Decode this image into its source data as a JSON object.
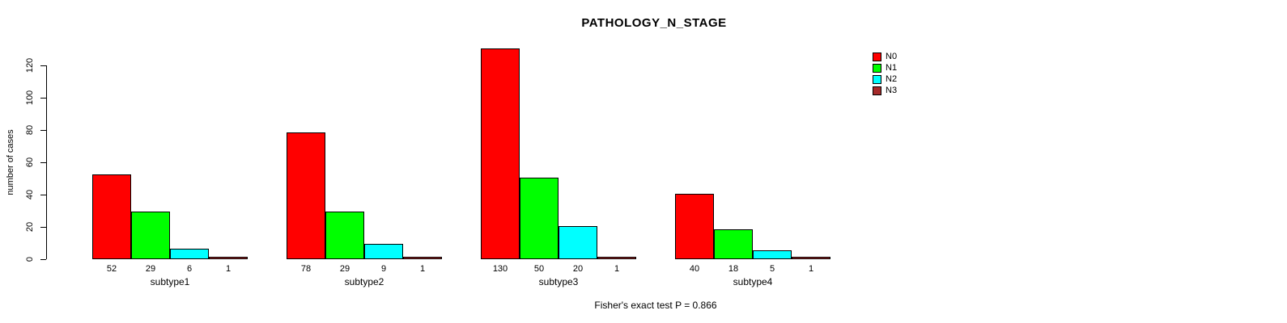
{
  "chart_data": {
    "type": "bar",
    "title": "PATHOLOGY_N_STAGE",
    "ylabel": "number of cases",
    "xlabel": "",
    "categories": [
      "subtype1",
      "subtype2",
      "subtype3",
      "subtype4"
    ],
    "series": [
      {
        "name": "N0",
        "color": "#ff0000",
        "values": [
          52,
          78,
          130,
          40
        ]
      },
      {
        "name": "N1",
        "color": "#00ff00",
        "values": [
          29,
          29,
          50,
          18
        ]
      },
      {
        "name": "N2",
        "color": "#00ffff",
        "values": [
          6,
          9,
          20,
          5
        ]
      },
      {
        "name": "N3",
        "color": "#a52a2a",
        "values": [
          1,
          1,
          1,
          1
        ]
      }
    ],
    "yticks": [
      0,
      20,
      40,
      60,
      80,
      100,
      120
    ],
    "ylim": [
      0,
      130
    ],
    "grid": false,
    "bar_value_labels_shown": true,
    "legend_position": "top-right",
    "annotation": "Fisher's exact test P = 0.866"
  }
}
